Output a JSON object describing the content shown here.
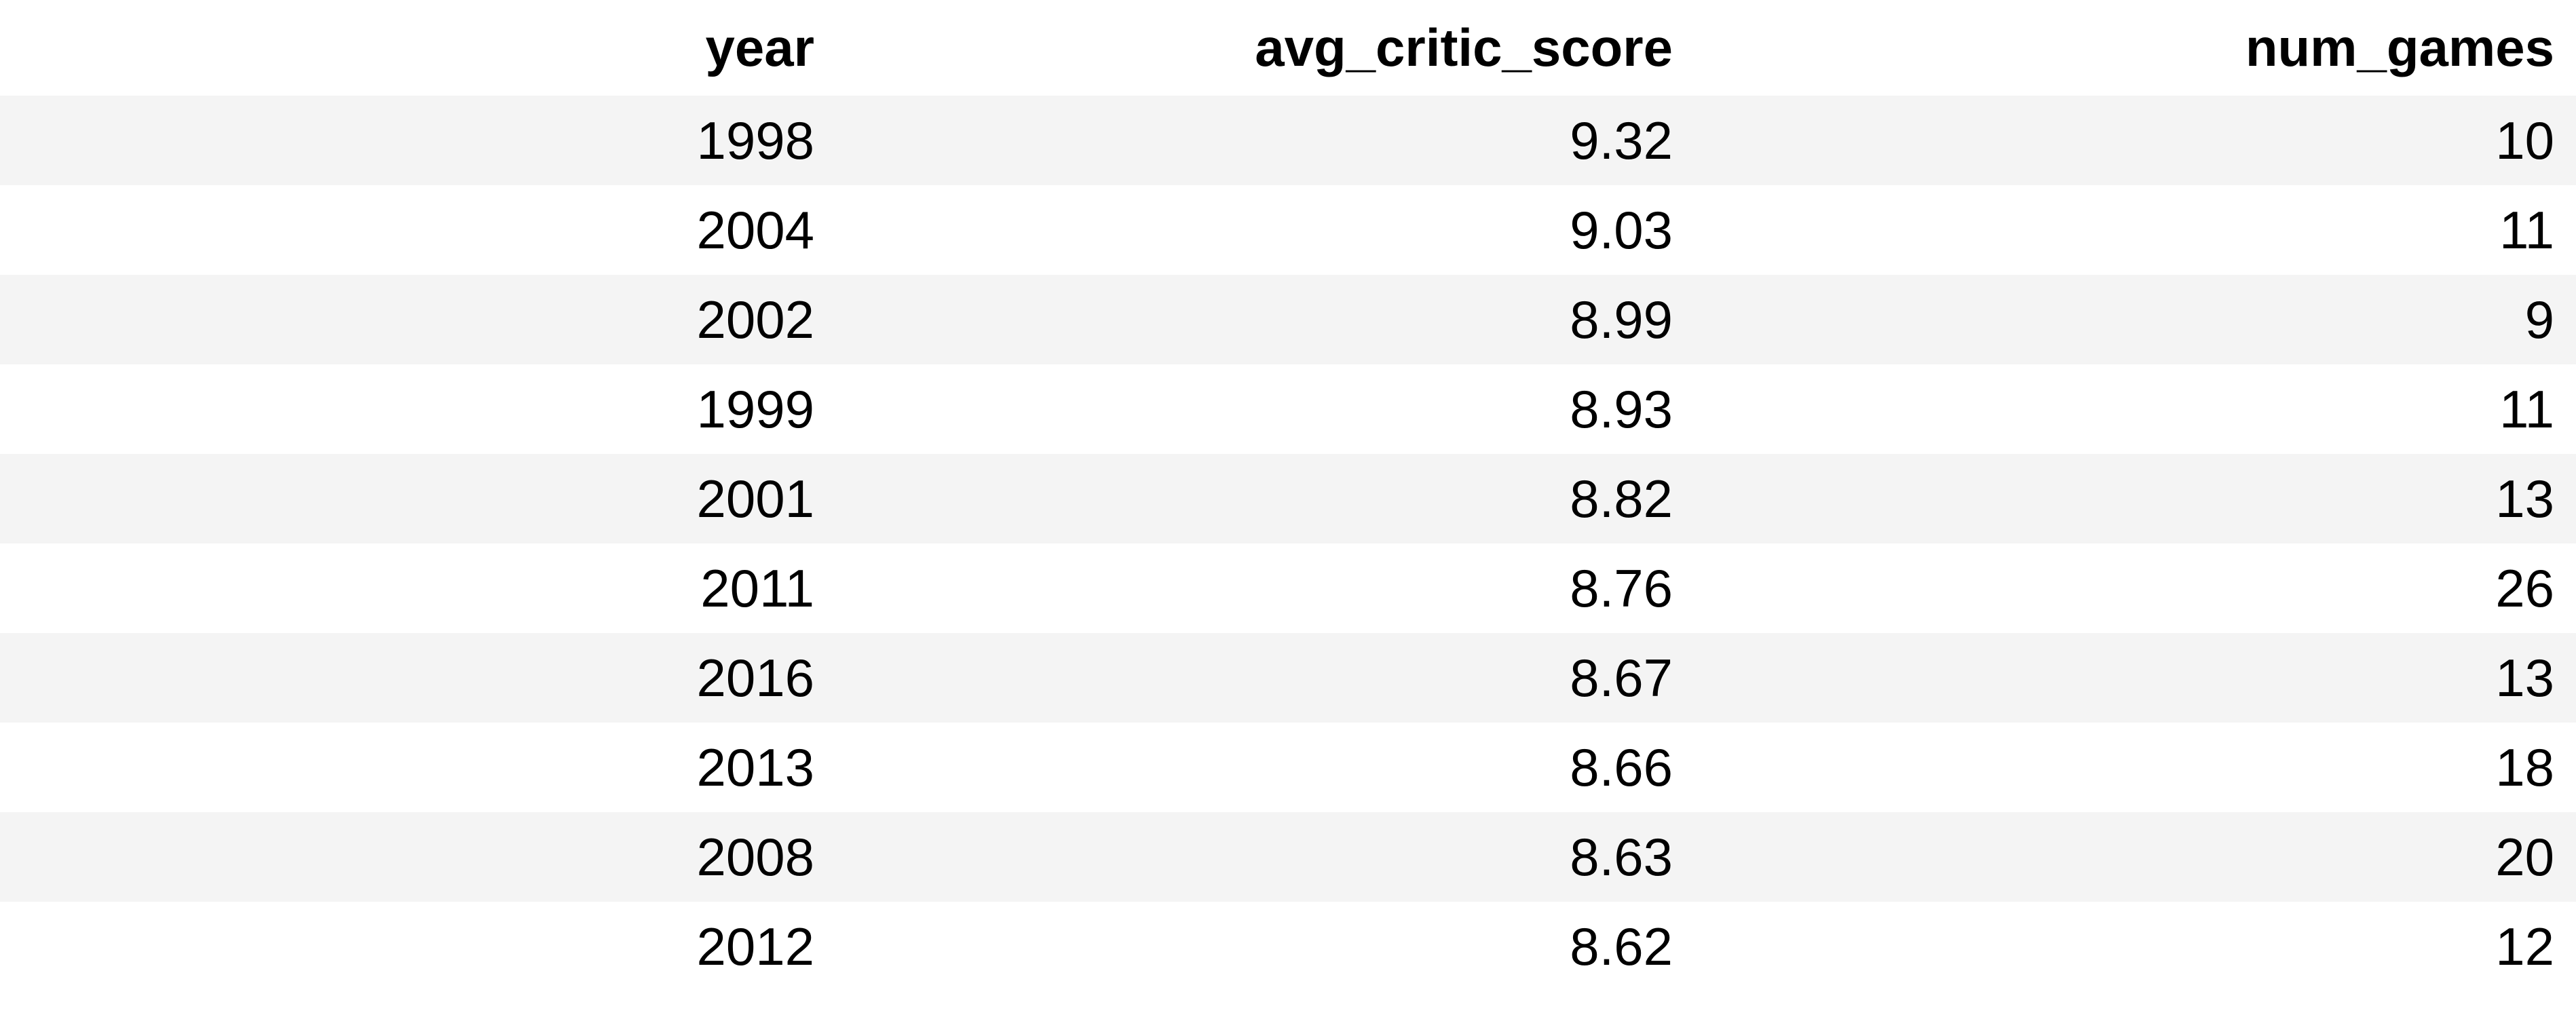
{
  "table": {
    "columns": [
      "year",
      "avg_critic_score",
      "num_games"
    ],
    "rows": [
      [
        "1998",
        "9.32",
        "10"
      ],
      [
        "2004",
        "9.03",
        "11"
      ],
      [
        "2002",
        "8.99",
        "9"
      ],
      [
        "1999",
        "8.93",
        "11"
      ],
      [
        "2001",
        "8.82",
        "13"
      ],
      [
        "2011",
        "8.76",
        "26"
      ],
      [
        "2016",
        "8.67",
        "13"
      ],
      [
        "2013",
        "8.66",
        "18"
      ],
      [
        "2008",
        "8.63",
        "20"
      ],
      [
        "2012",
        "8.62",
        "12"
      ]
    ]
  },
  "colors": {
    "stripe": "#f4f4f4",
    "background": "#ffffff",
    "text": "#000000"
  }
}
